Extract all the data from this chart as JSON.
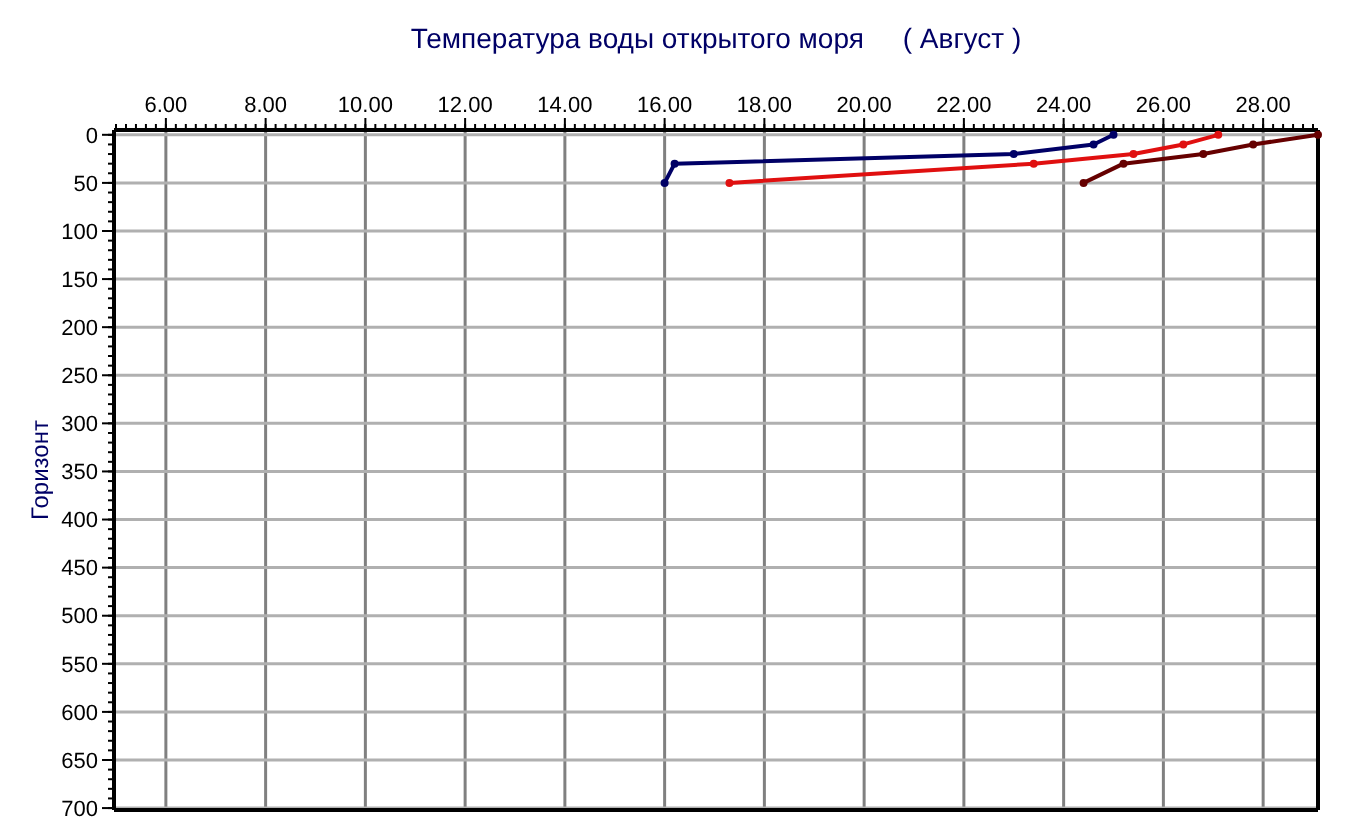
{
  "chart_data": {
    "type": "line",
    "title": "Температура воды открытого моря     ( Август )",
    "ylabel": "Горизонт",
    "xlim": [
      4.96,
      29.1
    ],
    "ylim": [
      702,
      -5
    ],
    "xticks": [
      {
        "value": 6,
        "label": "6.00"
      },
      {
        "value": 8,
        "label": "8.00"
      },
      {
        "value": 10,
        "label": "10.00"
      },
      {
        "value": 12,
        "label": "12.00"
      },
      {
        "value": 14,
        "label": "14.00"
      },
      {
        "value": 16,
        "label": "16.00"
      },
      {
        "value": 18,
        "label": "18.00"
      },
      {
        "value": 20,
        "label": "20.00"
      },
      {
        "value": 22,
        "label": "22.00"
      },
      {
        "value": 24,
        "label": "24.00"
      },
      {
        "value": 26,
        "label": "26.00"
      },
      {
        "value": 28,
        "label": "28.00"
      }
    ],
    "yticks": [
      0,
      50,
      100,
      150,
      200,
      250,
      300,
      350,
      400,
      450,
      500,
      550,
      600,
      650,
      700
    ],
    "grid": true,
    "marker": "circle",
    "line_style": "solid",
    "series": [
      {
        "color": "#000066",
        "x": [
          25.0,
          24.6,
          23.0,
          16.2,
          16.0
        ],
        "values": [
          0,
          10,
          20,
          30,
          50
        ]
      },
      {
        "color": "#e01010",
        "x": [
          27.1,
          26.4,
          25.4,
          23.4,
          17.3
        ],
        "values": [
          0,
          10,
          20,
          30,
          50
        ]
      },
      {
        "color": "#660000",
        "x": [
          29.1,
          27.8,
          26.8,
          25.2,
          24.4
        ],
        "values": [
          0,
          10,
          20,
          30,
          50
        ]
      }
    ]
  }
}
